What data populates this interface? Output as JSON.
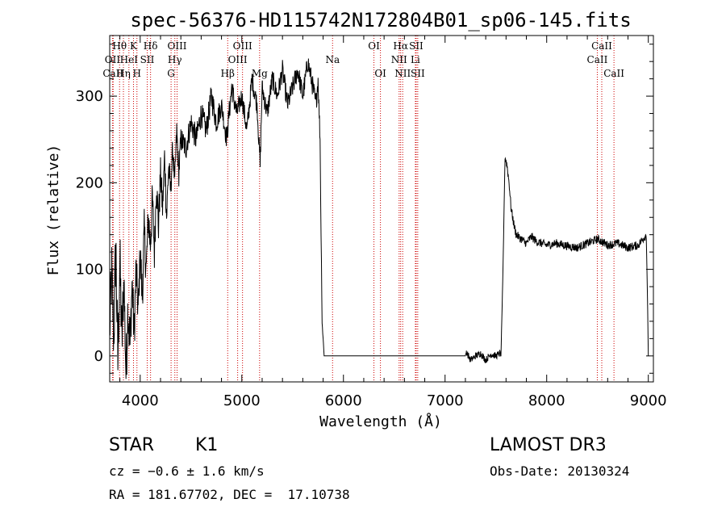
{
  "chart_data": {
    "type": "line",
    "title": "spec-56376-HD115742N172804B01_sp06-145.fits",
    "xlabel": "Wavelength (Å)",
    "ylabel": "Flux (relative)",
    "xlim": [
      3700,
      9050
    ],
    "ylim": [
      -30,
      370
    ],
    "xticks": [
      4000,
      5000,
      6000,
      7000,
      8000,
      9000
    ],
    "yticks": [
      0,
      100,
      200,
      300
    ],
    "line_color": "#000000",
    "marker_color": "#cc0000",
    "series": [
      {
        "name": "flux",
        "x": [
          3700,
          3720,
          3740,
          3760,
          3780,
          3800,
          3820,
          3840,
          3860,
          3880,
          3900,
          3920,
          3940,
          3960,
          3980,
          4000,
          4020,
          4040,
          4060,
          4080,
          4100,
          4120,
          4140,
          4160,
          4180,
          4200,
          4220,
          4240,
          4260,
          4280,
          4300,
          4320,
          4340,
          4360,
          4380,
          4400,
          4450,
          4500,
          4550,
          4600,
          4650,
          4700,
          4750,
          4800,
          4850,
          4900,
          4950,
          5000,
          5050,
          5100,
          5150,
          5180,
          5200,
          5250,
          5300,
          5350,
          5400,
          5450,
          5500,
          5550,
          5600,
          5650,
          5700,
          5730,
          5750,
          5770,
          5780,
          5790,
          5800,
          5810,
          5820,
          5850,
          6000,
          6500,
          7000,
          7200,
          7210,
          7250,
          7300,
          7350,
          7400,
          7450,
          7500,
          7540,
          7550,
          7570,
          7590,
          7610,
          7630,
          7650,
          7680,
          7700,
          7750,
          7800,
          7850,
          7900,
          7950,
          8000,
          8100,
          8200,
          8300,
          8400,
          8500,
          8600,
          8700,
          8800,
          8900,
          8980,
          8990,
          9000
        ],
        "y": [
          30,
          95,
          20,
          130,
          -10,
          110,
          15,
          90,
          -20,
          60,
          10,
          85,
          25,
          100,
          50,
          120,
          70,
          140,
          100,
          160,
          130,
          180,
          120,
          200,
          150,
          210,
          170,
          230,
          160,
          220,
          190,
          240,
          200,
          260,
          210,
          250,
          240,
          270,
          250,
          280,
          260,
          300,
          270,
          290,
          250,
          310,
          280,
          300,
          260,
          320,
          290,
          220,
          310,
          280,
          320,
          300,
          330,
          290,
          310,
          330,
          300,
          340,
          310,
          290,
          320,
          250,
          140,
          40,
          20,
          0,
          0,
          0,
          0,
          0,
          0,
          0,
          5,
          -5,
          0,
          3,
          -5,
          2,
          0,
          3,
          0,
          100,
          230,
          220,
          200,
          170,
          150,
          140,
          135,
          130,
          138,
          132,
          130,
          128,
          130,
          127,
          125,
          130,
          135,
          128,
          130,
          125,
          128,
          140,
          80,
          0
        ],
        "noise": [
          40,
          40,
          40,
          45,
          40,
          40,
          40,
          35,
          40,
          35,
          35,
          30,
          30,
          30,
          25,
          25,
          30,
          30,
          25,
          25,
          30,
          25,
          25,
          20,
          25,
          20,
          20,
          20,
          20,
          20,
          15,
          15,
          15,
          15,
          15,
          15,
          15,
          15,
          15,
          15,
          15,
          15,
          15,
          12,
          12,
          15,
          12,
          12,
          12,
          12,
          12,
          12,
          12,
          12,
          12,
          12,
          12,
          12,
          12,
          12,
          12,
          12,
          12,
          12,
          12,
          8,
          6,
          4,
          2,
          0,
          0,
          0,
          0,
          0,
          0,
          0,
          4,
          4,
          4,
          4,
          4,
          4,
          4,
          4,
          0,
          0,
          4,
          6,
          5,
          5,
          5,
          5,
          5,
          5,
          5,
          5,
          5,
          5,
          5,
          5,
          5,
          5,
          5,
          5,
          5,
          5,
          5,
          5,
          0,
          0
        ]
      }
    ],
    "lines": [
      {
        "name": "OII",
        "lambda": 3727,
        "row": 1
      },
      {
        "name": "CaII",
        "lambda": 3734,
        "row": 2
      },
      {
        "name": "Hθ",
        "lambda": 3797,
        "row": 0
      },
      {
        "name": "Hη",
        "lambda": 3835,
        "row": 2
      },
      {
        "name": "HeI",
        "lambda": 3889,
        "row": 1
      },
      {
        "name": "K",
        "lambda": 3934,
        "row": 0
      },
      {
        "name": "H",
        "lambda": 3968,
        "row": 2
      },
      {
        "name": "SII",
        "lambda": 4069,
        "row": 1
      },
      {
        "name": "Hδ",
        "lambda": 4102,
        "row": 0
      },
      {
        "name": "G",
        "lambda": 4304,
        "row": 2
      },
      {
        "name": "Hγ",
        "lambda": 4341,
        "row": 1
      },
      {
        "name": "OIII",
        "lambda": 4363,
        "row": 0
      },
      {
        "name": "Hβ",
        "lambda": 4861,
        "row": 2
      },
      {
        "name": "OIII",
        "lambda": 4959,
        "row": 1
      },
      {
        "name": "OIII",
        "lambda": 5007,
        "row": 0
      },
      {
        "name": "Mg",
        "lambda": 5175,
        "row": 2
      },
      {
        "name": "Na",
        "lambda": 5893,
        "row": 1
      },
      {
        "name": "OI",
        "lambda": 6300,
        "row": 0
      },
      {
        "name": "OI",
        "lambda": 6364,
        "row": 2
      },
      {
        "name": "NII",
        "lambda": 6548,
        "row": 1
      },
      {
        "name": "Hα",
        "lambda": 6563,
        "row": 0
      },
      {
        "name": "NII",
        "lambda": 6583,
        "row": 2
      },
      {
        "name": "Li",
        "lambda": 6708,
        "row": 1
      },
      {
        "name": "SII",
        "lambda": 6716,
        "row": 0
      },
      {
        "name": "SII",
        "lambda": 6731,
        "row": 2
      },
      {
        "name": "CaII",
        "lambda": 8498,
        "row": 1
      },
      {
        "name": "CaII",
        "lambda": 8542,
        "row": 0
      },
      {
        "name": "CaII",
        "lambda": 8662,
        "row": 2
      }
    ]
  },
  "info": {
    "class": "STAR",
    "subclass": "K1",
    "cz": "cz = −0.6 ± 1.6 km/s",
    "radec": "RA = 181.67702, DEC =  17.10738",
    "survey": "LAMOST DR3",
    "obs_date": "Obs-Date: 20130324"
  }
}
